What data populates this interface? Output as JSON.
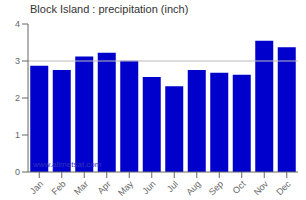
{
  "chart_data": {
    "type": "bar",
    "title": "Block Island : precipitation (inch)",
    "categories": [
      "Jan",
      "Feb",
      "Mar",
      "Apr",
      "May",
      "Jun",
      "Jul",
      "Aug",
      "Sep",
      "Oct",
      "Nov",
      "Dec"
    ],
    "values": [
      2.87,
      2.76,
      3.12,
      3.22,
      3.01,
      2.57,
      2.32,
      2.76,
      2.68,
      2.63,
      3.55,
      3.37
    ],
    "color": "#0000CC",
    "ylim": [
      0,
      4
    ],
    "yticks": [
      0,
      1,
      2,
      3,
      4
    ],
    "hline": 3,
    "annotation": "www.allmetsat.com"
  }
}
